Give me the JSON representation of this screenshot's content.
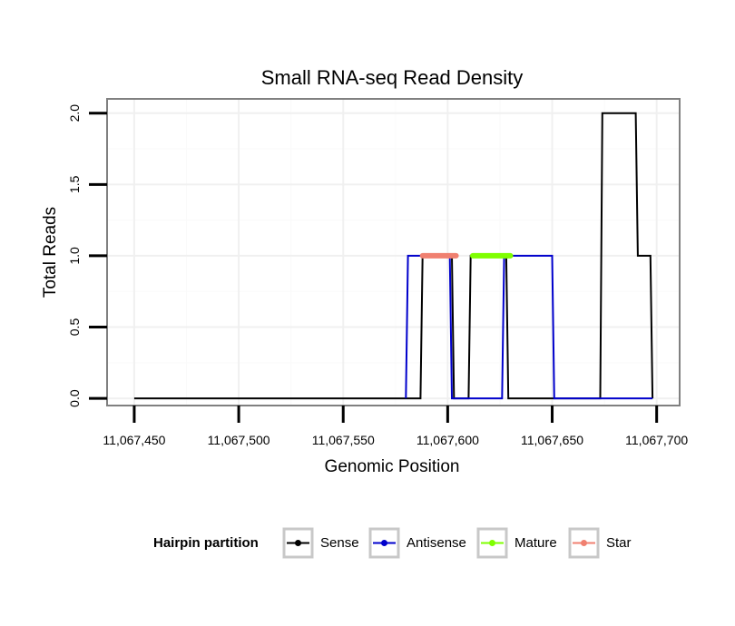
{
  "chart_data": {
    "type": "line",
    "title": "Small RNA-seq Read Density",
    "xlabel": "Genomic Position",
    "ylabel": "Total Reads",
    "xlim": [
      11067437,
      11067711
    ],
    "ylim": [
      -0.05,
      2.1
    ],
    "x_ticks": [
      11067450,
      11067500,
      11067550,
      11067600,
      11067650,
      11067700
    ],
    "x_tick_labels": [
      "11,067,450",
      "11,067,500",
      "11,067,550",
      "11,067,600",
      "11,067,650",
      "11,067,700"
    ],
    "y_ticks": [
      0,
      0.5,
      1.0,
      1.5,
      2.0
    ],
    "y_tick_labels": [
      "0.0",
      "0.5",
      "1.0",
      "1.5",
      "2.0"
    ],
    "grid": true,
    "legend": {
      "title": "Hairpin partition",
      "position": "bottom",
      "items": [
        "Sense",
        "Antisense",
        "Mature",
        "Star"
      ]
    },
    "series": [
      {
        "name": "Sense",
        "color": "#000000",
        "x": [
          11067450,
          11067587,
          11067588,
          11067602,
          11067603,
          11067610,
          11067611,
          11067628,
          11067629,
          11067673,
          11067674,
          11067690,
          11067691,
          11067697,
          11067698
        ],
        "y": [
          0,
          0,
          1,
          1,
          0,
          0,
          1,
          1,
          0,
          0,
          2,
          2,
          1,
          1,
          0
        ]
      },
      {
        "name": "Antisense",
        "color": "#0000cc",
        "x": [
          11067580,
          11067581,
          11067601,
          11067602,
          11067626,
          11067627,
          11067650,
          11067651,
          11067698
        ],
        "y": [
          0,
          1,
          1,
          0,
          0,
          1,
          1,
          0,
          0
        ]
      },
      {
        "name": "Mature",
        "color": "#7fff00",
        "x": [
          11067612,
          11067630
        ],
        "y": [
          1,
          1
        ]
      },
      {
        "name": "Star",
        "color": "#f08070",
        "x": [
          11067588,
          11067604
        ],
        "y": [
          1,
          1
        ]
      }
    ]
  }
}
